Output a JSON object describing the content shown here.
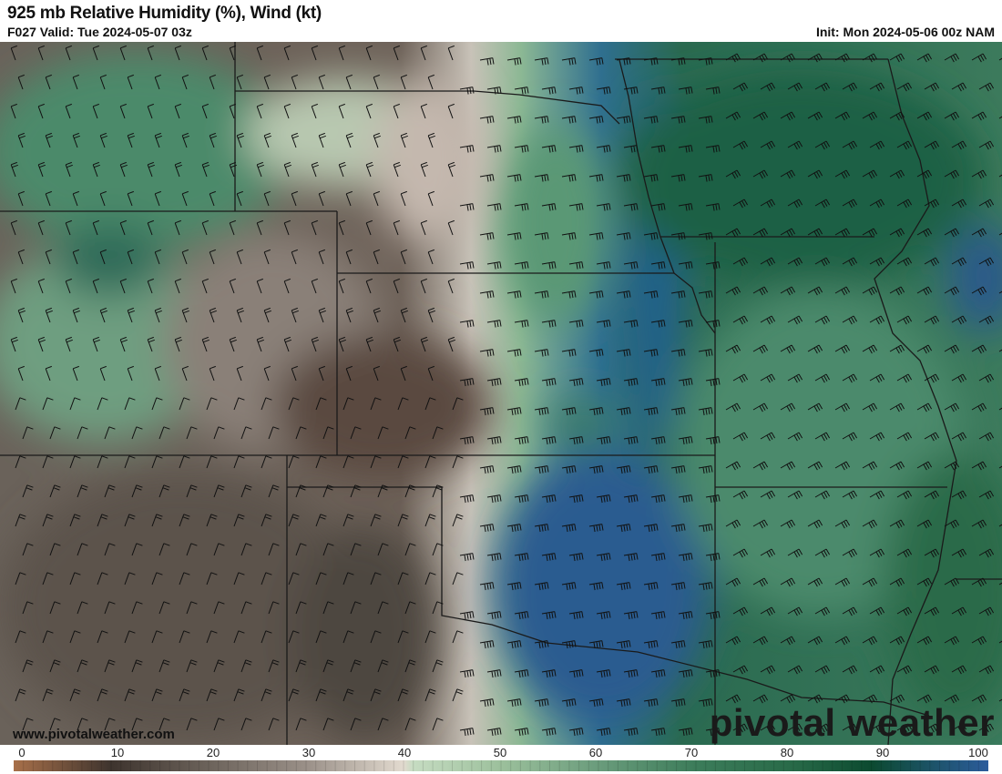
{
  "header": {
    "title": "925 mb Relative Humidity (%), Wind (kt)",
    "valid": "F027 Valid: Tue 2024-05-07 03z",
    "init": "Init: Mon 2024-05-06 00z NAM"
  },
  "map": {
    "field": "relative-humidity",
    "overlay": "wind-barbs",
    "watermark_site": "www.pivotalweather.com",
    "logo": "pivotal weather"
  },
  "colorbar": {
    "ticks": [
      "0",
      "10",
      "20",
      "30",
      "40",
      "50",
      "60",
      "70",
      "80",
      "90",
      "100"
    ],
    "range": [
      0,
      100
    ],
    "stops": [
      {
        "value": 0,
        "color": "#a8704a"
      },
      {
        "value": 10,
        "color": "#3e342e"
      },
      {
        "value": 20,
        "color": "#6c635b"
      },
      {
        "value": 30,
        "color": "#9a9088"
      },
      {
        "value": 40,
        "color": "#e2dacf"
      },
      {
        "value": 41,
        "color": "#c6dcc2"
      },
      {
        "value": 50,
        "color": "#9cc09c"
      },
      {
        "value": 60,
        "color": "#6a9c7c"
      },
      {
        "value": 70,
        "color": "#3c7c5a"
      },
      {
        "value": 80,
        "color": "#286a48"
      },
      {
        "value": 88,
        "color": "#0c4a30"
      },
      {
        "value": 100,
        "color": "#2c5c9c"
      }
    ]
  }
}
